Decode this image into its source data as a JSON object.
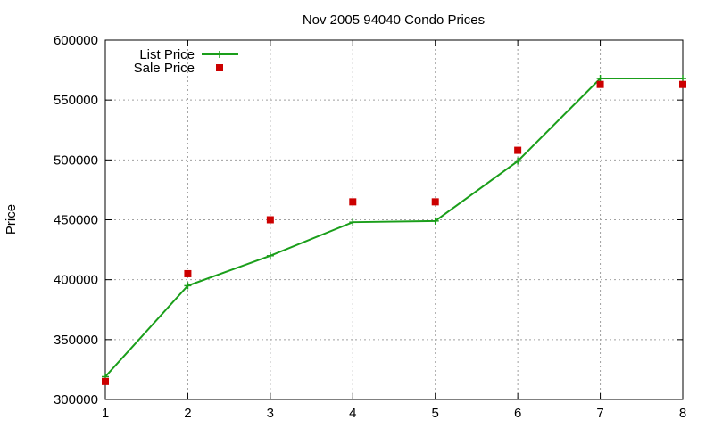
{
  "chart_data": {
    "type": "line",
    "title": "Nov 2005 94040 Condo Prices",
    "xlabel": "",
    "ylabel": "Price",
    "xlim": [
      1,
      8
    ],
    "ylim": [
      300000,
      600000
    ],
    "x_ticks": [
      "1",
      "2",
      "3",
      "4",
      "5",
      "6",
      "7",
      "8"
    ],
    "y_ticks": [
      "300000",
      "350000",
      "400000",
      "450000",
      "500000",
      "550000",
      "600000"
    ],
    "grid": true,
    "legend_position": "top-left",
    "x": [
      1,
      2,
      3,
      4,
      5,
      6,
      7,
      8
    ],
    "series": [
      {
        "name": "List Price",
        "style": "linespoints",
        "marker": "plus",
        "color": "#1a9e1a",
        "values": [
          319000,
          395000,
          420000,
          448000,
          449000,
          499000,
          568000,
          568000
        ]
      },
      {
        "name": "Sale Price",
        "style": "points",
        "marker": "square",
        "color": "#cc0000",
        "values": [
          315000,
          405000,
          450000,
          465000,
          465000,
          508000,
          563000,
          563000
        ]
      }
    ]
  }
}
